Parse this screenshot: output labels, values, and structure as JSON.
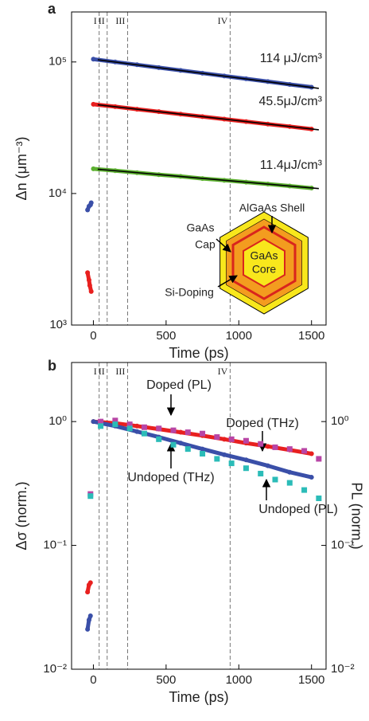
{
  "chart_data": [
    {
      "type": "scatter",
      "panel": "a",
      "xlabel": "Time (ps)",
      "ylabel": "Δn (μm⁻³)",
      "log_y": true,
      "xlim": [
        -150,
        1600
      ],
      "xticks": [
        0,
        500,
        1000,
        1500
      ],
      "ylim": [
        1000,
        240000
      ],
      "yticks": [
        {
          "value": 1000,
          "label": "10³"
        },
        {
          "value": 10000,
          "label": "10⁴"
        },
        {
          "value": 100000,
          "label": "10⁵"
        }
      ],
      "regions": [
        {
          "x": 40,
          "label": "I"
        },
        {
          "x": 95,
          "label": "II"
        },
        {
          "x": 235,
          "label": "III"
        },
        {
          "x": 940,
          "label": "IV"
        }
      ],
      "series": [
        {
          "name": "114 μJ/cm³",
          "color": "#3a4fa8",
          "marker": "circle",
          "line": true,
          "x": [
            -40,
            -30,
            -20,
            -15,
            -5,
            0,
            150,
            300,
            450,
            600,
            750,
            900,
            1050,
            1200,
            1350,
            1500
          ],
          "values": [
            7500,
            8000,
            8200,
            8500,
            null,
            105000,
            100000,
            95200,
            90600,
            86300,
            82200,
            78200,
            74500,
            70900,
            67500,
            64300
          ]
        },
        {
          "name": "45.5μJ/cm³",
          "color": "#e8201f",
          "marker": "circle",
          "line": true,
          "x": [
            -40,
            -30,
            -25,
            -15,
            -5,
            0,
            150,
            300,
            450,
            600,
            750,
            900,
            1050,
            1200,
            1350,
            1500
          ],
          "values": [
            2500,
            2200,
            2000,
            1800,
            null,
            47700,
            45700,
            43700,
            41900,
            40100,
            38400,
            36800,
            35200,
            33700,
            32300,
            30900
          ]
        },
        {
          "name": "11.4μJ/cm³",
          "color": "#5cb030",
          "marker": "circle",
          "line": true,
          "x": [
            0,
            150,
            300,
            450,
            600,
            750,
            900,
            1050,
            1200,
            1350,
            1500
          ],
          "values": [
            15400,
            14900,
            14400,
            13900,
            13500,
            13000,
            12600,
            12200,
            11800,
            11400,
            11000
          ]
        }
      ],
      "fits": [
        {
          "color": "#000000",
          "x": [
            30,
            1550
          ],
          "values": [
            104000,
            63000
          ]
        },
        {
          "color": "#000000",
          "x": [
            30,
            1550
          ],
          "values": [
            47300,
            30500
          ]
        },
        {
          "color": "#000000",
          "x": [
            30,
            1550
          ],
          "values": [
            15300,
            10900
          ]
        }
      ],
      "inset": {
        "labels": [
          "AlGaAs Shell",
          "GaAs",
          "Cap",
          "GaAs",
          "Core",
          "Si-Doping"
        ]
      }
    },
    {
      "type": "scatter",
      "panel": "b",
      "xlabel": "Time (ps)",
      "ylabel": "Δσ (norm.)",
      "y2label": "PL (norm.)",
      "log_y": true,
      "xlim": [
        -150,
        1600
      ],
      "xticks": [
        0,
        500,
        1000,
        1500
      ],
      "ylim": [
        0.01,
        3
      ],
      "yticks": [
        {
          "value": 0.01,
          "label": "10⁻²"
        },
        {
          "value": 0.1,
          "label": "10⁻¹"
        },
        {
          "value": 1,
          "label": "10⁰"
        }
      ],
      "y2lim": [
        0.01,
        3
      ],
      "y2ticks": [
        {
          "value": 0.01,
          "label": "10⁻²"
        },
        {
          "value": 0.1,
          "label": "10⁻¹"
        },
        {
          "value": 1,
          "label": "10⁰"
        }
      ],
      "regions": [
        {
          "x": 40,
          "label": "I"
        },
        {
          "x": 95,
          "label": "II"
        },
        {
          "x": 235,
          "label": "III"
        },
        {
          "x": 940,
          "label": "IV"
        }
      ],
      "series": [
        {
          "name": "Doped (THz)",
          "color": "#e8201f",
          "marker": "circle",
          "line": true,
          "x": [
            -40,
            -30,
            -20,
            -5,
            0,
            150,
            300,
            450,
            600,
            750,
            900,
            1050,
            1200,
            1350,
            1500
          ],
          "values": [
            0.042,
            0.048,
            0.05,
            null,
            1.0,
            0.97,
            0.92,
            0.87,
            0.82,
            0.77,
            0.72,
            0.67,
            0.63,
            0.59,
            0.55
          ]
        },
        {
          "name": "Undoped (THz)",
          "color": "#3a4fa8",
          "marker": "circle",
          "line": true,
          "x": [
            -40,
            -30,
            -20,
            -5,
            0,
            150,
            300,
            450,
            600,
            750,
            900,
            1050,
            1200,
            1350,
            1500
          ],
          "values": [
            0.021,
            0.025,
            0.027,
            null,
            1.0,
            0.92,
            0.83,
            0.75,
            0.67,
            0.6,
            0.54,
            0.49,
            0.44,
            0.39,
            0.355
          ]
        },
        {
          "name": "Doped (PL)",
          "color": "#b845a6",
          "marker": "square",
          "line": false,
          "axis": "y2",
          "x": [
            -20,
            50,
            150,
            250,
            350,
            450,
            550,
            650,
            750,
            850,
            950,
            1050,
            1150,
            1250,
            1350,
            1450,
            1550
          ],
          "values": [
            0.26,
            1.0,
            1.02,
            0.95,
            0.9,
            0.88,
            0.85,
            0.82,
            0.8,
            0.75,
            0.72,
            0.7,
            0.66,
            0.62,
            0.6,
            0.58,
            0.5
          ]
        },
        {
          "name": "Undoped (PL)",
          "color": "#2bbcb8",
          "marker": "square",
          "line": false,
          "axis": "y2",
          "x": [
            -20,
            50,
            150,
            250,
            350,
            450,
            550,
            650,
            750,
            850,
            950,
            1050,
            1150,
            1250,
            1350,
            1450,
            1550
          ],
          "values": [
            0.25,
            0.92,
            0.95,
            0.88,
            0.8,
            0.72,
            0.65,
            0.6,
            0.55,
            0.5,
            0.46,
            0.42,
            0.38,
            0.34,
            0.32,
            0.28,
            0.24
          ]
        }
      ]
    }
  ]
}
